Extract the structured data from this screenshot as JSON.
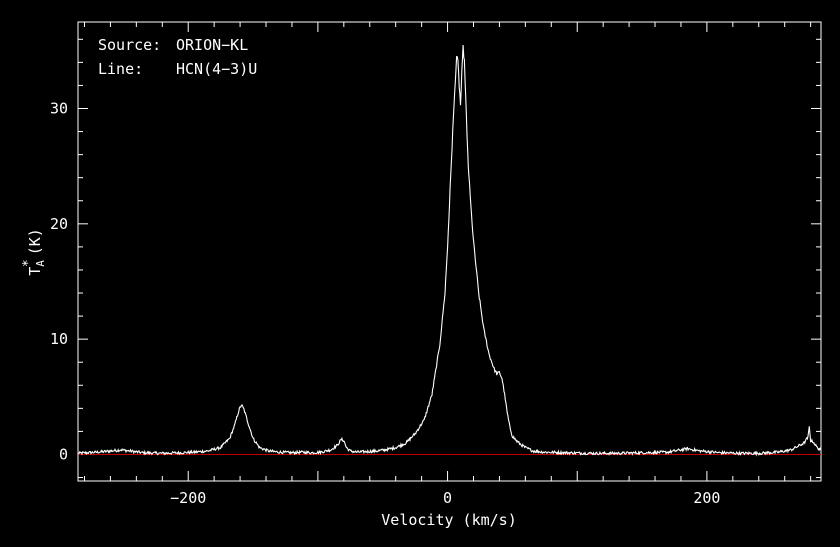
{
  "chart_data": {
    "type": "line",
    "title": "",
    "xlabel": "Velocity (km/s)",
    "ylabel": "T",
    "ylabel_sup": "*",
    "ylabel_sub": "A",
    "ylabel_unit": "(K)",
    "xlim": [
      -285,
      288
    ],
    "ylim": [
      -2.3,
      37.5
    ],
    "xticks": [
      -200,
      0,
      200
    ],
    "xtick_labels": [
      "−200",
      "0",
      "200"
    ],
    "yticks": [
      0,
      10,
      20,
      30
    ],
    "ytick_labels": [
      "0",
      "10",
      "20",
      "30"
    ],
    "grid": false,
    "annotations": {
      "source_label": "Source:",
      "source_value": "ORION−KL",
      "line_label": "Line:",
      "line_value": "HCN(4−3)U"
    },
    "baseline": {
      "y": 0,
      "color": "#c00000"
    },
    "series": [
      {
        "color": "#ffffff",
        "x": [
          -285,
          -270,
          -260,
          -252,
          -245,
          -235,
          -220,
          -205,
          -195,
          -185,
          -175,
          -168,
          -164,
          -161,
          -159,
          -157,
          -154,
          -150,
          -145,
          -138,
          -130,
          -120,
          -112,
          -105,
          -98,
          -90,
          -85,
          -82,
          -80,
          -78,
          -75,
          -70,
          -62,
          -55,
          -48,
          -40,
          -32,
          -25,
          -18,
          -12,
          -6,
          -2,
          0,
          2,
          4,
          6,
          7,
          8,
          9,
          10,
          11,
          12,
          13,
          14,
          15,
          16,
          18,
          20,
          24,
          28,
          32,
          36,
          38,
          40,
          42,
          44,
          46,
          48,
          50,
          53,
          56,
          60,
          66,
          75,
          90,
          110,
          130,
          150,
          170,
          180,
          185,
          195,
          210,
          225,
          240,
          255,
          265,
          270,
          275,
          278,
          279,
          280,
          282,
          285,
          288
        ],
        "y": [
          0.1,
          0.2,
          0.3,
          0.4,
          0.3,
          0.15,
          0.1,
          0.15,
          0.2,
          0.3,
          0.6,
          1.4,
          2.6,
          3.8,
          4.3,
          3.9,
          2.8,
          1.4,
          0.6,
          0.3,
          0.2,
          0.15,
          0.2,
          0.15,
          0.2,
          0.4,
          0.8,
          1.3,
          1.2,
          0.6,
          0.3,
          0.2,
          0.25,
          0.3,
          0.4,
          0.6,
          1.0,
          1.8,
          3.0,
          5.2,
          9.5,
          14.0,
          18.0,
          23.0,
          28.0,
          32.5,
          34.5,
          34.0,
          32.0,
          30.3,
          33.0,
          35.3,
          34.0,
          31.0,
          27.5,
          25.0,
          21.5,
          18.5,
          14.0,
          10.8,
          8.7,
          7.4,
          7.0,
          7.1,
          6.6,
          5.2,
          3.6,
          2.4,
          1.6,
          1.2,
          0.9,
          0.6,
          0.3,
          0.2,
          0.15,
          0.1,
          0.1,
          0.15,
          0.2,
          0.4,
          0.5,
          0.3,
          0.15,
          0.1,
          0.1,
          0.2,
          0.4,
          0.7,
          1.0,
          1.5,
          2.4,
          1.2,
          1.1,
          0.6,
          0.4
        ]
      }
    ]
  }
}
